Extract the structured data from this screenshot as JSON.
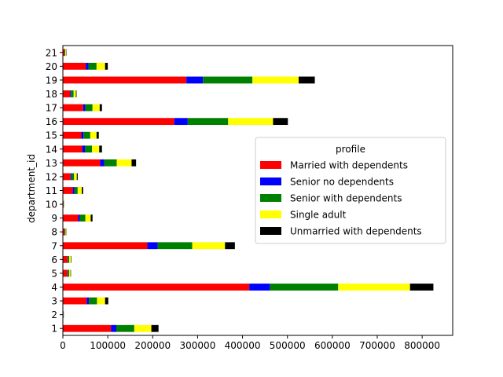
{
  "chart_data": {
    "type": "bar",
    "orientation": "horizontal",
    "stacked": true,
    "title": "",
    "ylabel": "department_id",
    "xlabel": "",
    "xlim": [
      0,
      868000
    ],
    "xticks": [
      0,
      100000,
      200000,
      300000,
      400000,
      500000,
      600000,
      700000,
      800000
    ],
    "xtick_labels": [
      "0",
      "100000",
      "200000",
      "300000",
      "400000",
      "500000",
      "600000",
      "700000",
      "800000"
    ],
    "grid": false,
    "legend": {
      "title": "profile",
      "position": "center-right"
    },
    "categories": [
      "1",
      "2",
      "3",
      "4",
      "5",
      "6",
      "7",
      "8",
      "9",
      "10",
      "11",
      "12",
      "13",
      "14",
      "15",
      "16",
      "17",
      "18",
      "19",
      "20",
      "21"
    ],
    "series": [
      {
        "name": "Married with dependents",
        "color": "#ff0000",
        "values": [
          107000,
          1000,
          53000,
          415000,
          10000,
          10000,
          188000,
          4000,
          34000,
          1500,
          22000,
          17000,
          83000,
          43000,
          41000,
          248000,
          45000,
          16000,
          275000,
          51000,
          3500
        ]
      },
      {
        "name": "Senior no dependents",
        "color": "#0000ff",
        "values": [
          12000,
          300,
          5000,
          46000,
          1000,
          1000,
          23000,
          500,
          4000,
          200,
          4000,
          2000,
          9000,
          6000,
          5000,
          30000,
          5000,
          2000,
          37000,
          6000,
          500
        ]
      },
      {
        "name": "Senior with dependents",
        "color": "#008000",
        "values": [
          40000,
          400,
          18000,
          152000,
          3000,
          3000,
          77000,
          1500,
          12000,
          500,
          7000,
          6000,
          28000,
          16000,
          15000,
          90000,
          16000,
          6000,
          110000,
          18000,
          1500
        ]
      },
      {
        "name": "Single adult",
        "color": "#ffff00",
        "values": [
          38000,
          500,
          18000,
          160000,
          3000,
          3500,
          73000,
          1500,
          12000,
          500,
          9000,
          6000,
          33000,
          16000,
          14000,
          100000,
          16000,
          5000,
          103000,
          19000,
          1500
        ]
      },
      {
        "name": "Unmarried with dependents",
        "color": "#000000",
        "values": [
          16000,
          200,
          7000,
          52000,
          1000,
          1000,
          22000,
          500,
          4000,
          200,
          3000,
          2000,
          10000,
          6000,
          5000,
          33000,
          5000,
          1500,
          36000,
          6000,
          700
        ]
      }
    ]
  }
}
